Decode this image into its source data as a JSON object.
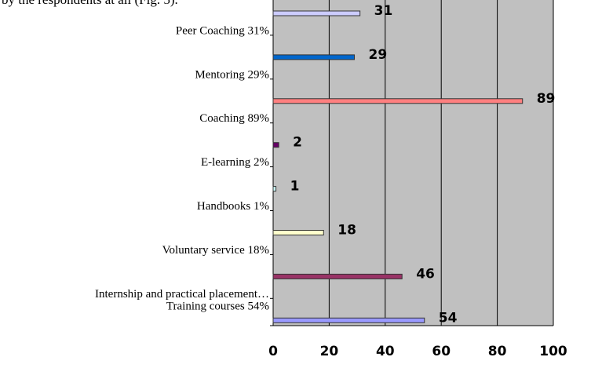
{
  "intro_text": "by the respondents at all (Fig. 5).",
  "chart_data": {
    "type": "bar",
    "orientation": "horizontal",
    "categories": [
      "Peer Coaching 31%",
      "Mentoring 29%",
      "Coaching 89%",
      "E-learning 2%",
      "Handbooks 1%",
      "Voluntary service 18%",
      "Internship and practical placement…",
      "Training courses 54%"
    ],
    "values": [
      31,
      29,
      89,
      2,
      1,
      18,
      46,
      54
    ],
    "colors": [
      "#ccccff",
      "#0066cc",
      "#ff8080",
      "#660066",
      "#ccffff",
      "#ffffcc",
      "#993366",
      "#9999ff"
    ],
    "xlim": [
      0,
      100
    ],
    "xticks": [
      0,
      20,
      40,
      60,
      80,
      100
    ],
    "grid": true
  }
}
